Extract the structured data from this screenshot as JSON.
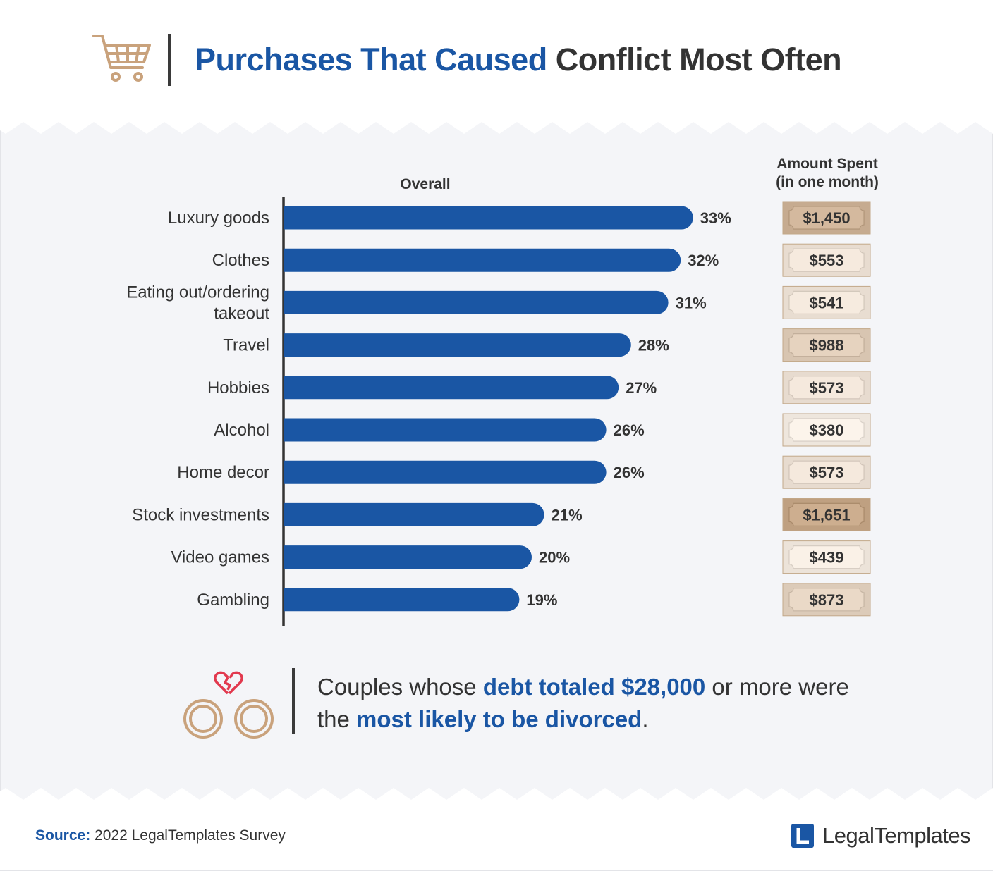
{
  "header": {
    "title_accent": "Purchases That Caused",
    "title_rest": "Conflict Most Often",
    "icon": "shopping-cart-icon"
  },
  "chart_data": {
    "type": "bar",
    "orientation": "horizontal",
    "title": "Purchases That Caused Conflict Most Often",
    "series_header": "Overall",
    "categories": [
      "Luxury goods",
      "Clothes",
      "Eating out/ordering takeout",
      "Travel",
      "Hobbies",
      "Alcohol",
      "Home decor",
      "Stock investments",
      "Video games",
      "Gambling"
    ],
    "category_lines": [
      [
        "Luxury goods"
      ],
      [
        "Clothes"
      ],
      [
        "Eating out/ordering",
        "takeout"
      ],
      [
        "Travel"
      ],
      [
        "Hobbies"
      ],
      [
        "Alcohol"
      ],
      [
        "Home decor"
      ],
      [
        "Stock investments"
      ],
      [
        "Video games"
      ],
      [
        "Gambling"
      ]
    ],
    "values": [
      33,
      32,
      31,
      28,
      27,
      26,
      26,
      21,
      20,
      19
    ],
    "value_labels": [
      "33%",
      "32%",
      "31%",
      "28%",
      "27%",
      "26%",
      "26%",
      "21%",
      "20%",
      "19%"
    ],
    "unit": "%",
    "bar_color": "#1a56a4",
    "amount_header_line1": "Amount Spent",
    "amount_header_line2": "(in one month)",
    "amounts": [
      1450,
      553,
      541,
      988,
      573,
      380,
      573,
      1651,
      439,
      873
    ],
    "amount_labels": [
      "$1,450",
      "$553",
      "$541",
      "$988",
      "$573",
      "$380",
      "$573",
      "$1,651",
      "$439",
      "$873"
    ],
    "amount_scale_colors": {
      "low": "#eee6dd",
      "high": "#bfa081"
    }
  },
  "callout": {
    "part1": "Couples whose ",
    "highlight1": "debt totaled $28,000",
    "part2": " or more were the ",
    "highlight2": "most likely to be divorced",
    "part3": ".",
    "icon": "wedding-rings-broken-heart-icon"
  },
  "footer": {
    "source_label": "Source:",
    "source_text": "2022 LegalTemplates Survey",
    "logo_text": "LegalTemplates",
    "logo_icon": "legaltemplates-logo-icon"
  },
  "colors": {
    "accent_blue": "#1a56a4",
    "tan": "#c9a27c",
    "heart_red": "#e2394e",
    "background": "#f4f5f8"
  }
}
